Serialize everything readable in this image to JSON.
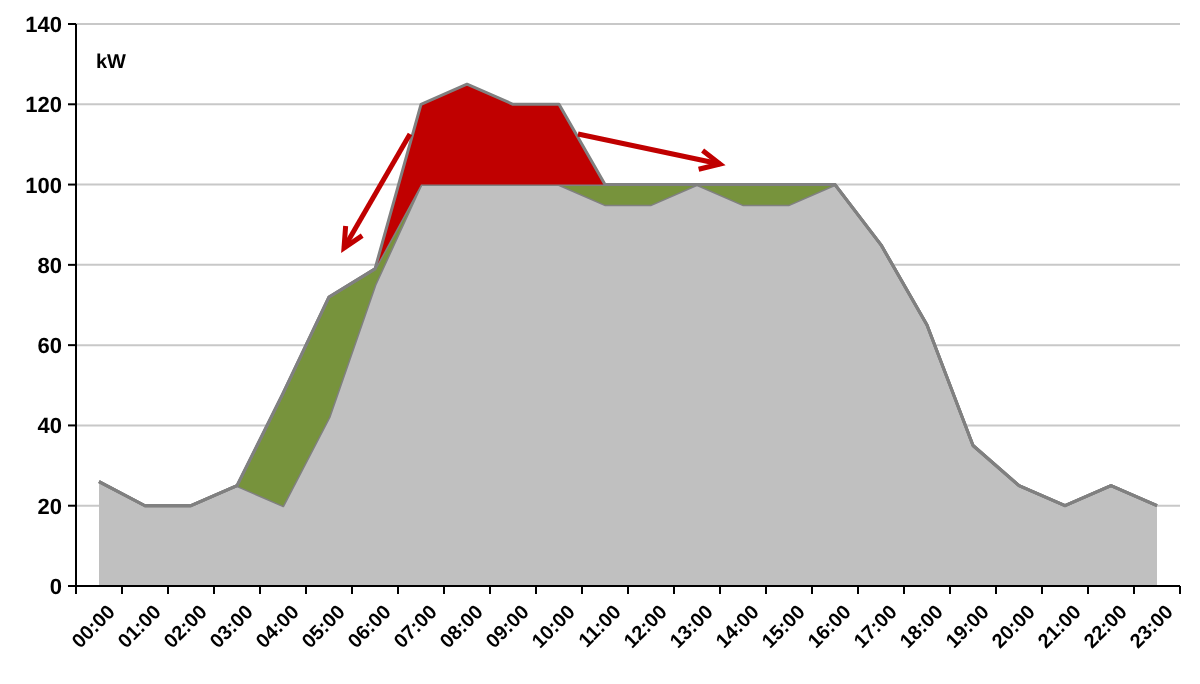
{
  "chart_data": {
    "type": "area",
    "stacked": true,
    "ylabel": "kW",
    "categories": [
      "00:00",
      "01:00",
      "02:00",
      "03:00",
      "04:00",
      "05:00",
      "06:00",
      "07:00",
      "08:00",
      "09:00",
      "10:00",
      "11:00",
      "12:00",
      "13:00",
      "14:00",
      "15:00",
      "16:00",
      "17:00",
      "18:00",
      "19:00",
      "20:00",
      "21:00",
      "22:00",
      "23:00"
    ],
    "series": [
      {
        "color": "#c0c0c0",
        "values": [
          26,
          20,
          20,
          25,
          20,
          42,
          75,
          100,
          100,
          100,
          100,
          95,
          95,
          100,
          95,
          95,
          100,
          85,
          65,
          35,
          25,
          20,
          25,
          20
        ]
      },
      {
        "color": "#77933c",
        "values": [
          0,
          0,
          0,
          0,
          28,
          30,
          4,
          0,
          0,
          0,
          0,
          5,
          5,
          0,
          5,
          5,
          0,
          0,
          0,
          0,
          0,
          0,
          0,
          0
        ]
      },
      {
        "color": "#c00000",
        "values": [
          0,
          0,
          0,
          0,
          0,
          0,
          0,
          20,
          25,
          20,
          20,
          0,
          0,
          0,
          0,
          0,
          0,
          0,
          0,
          0,
          0,
          0,
          0,
          0
        ]
      }
    ],
    "ylim": [
      0,
      140
    ],
    "yticks": [
      0,
      20,
      40,
      60,
      80,
      100,
      120,
      140
    ],
    "grid": "y"
  }
}
